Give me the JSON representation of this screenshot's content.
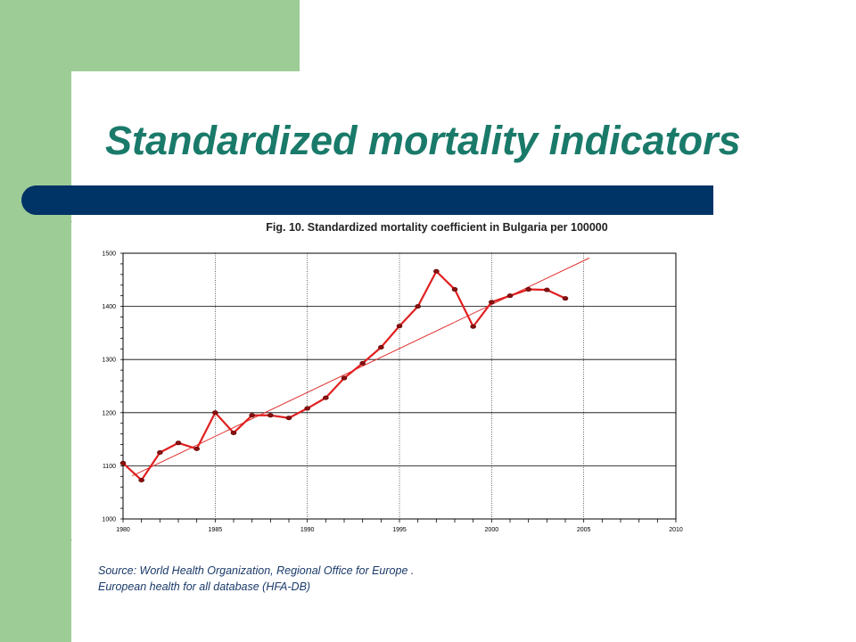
{
  "slide": {
    "title": "Standardized mortality indicators",
    "colors": {
      "green": "#9dcc97",
      "title": "#1a7a6a",
      "bar": "#003366",
      "series": "#e02020",
      "trend": "#e03030",
      "source_text": "#1a3a6a"
    }
  },
  "chart_data": {
    "type": "line",
    "title": "Fig. 10. Standardized mortality coefficient in Bulgaria per 100000",
    "xlabel": "",
    "ylabel": "",
    "xlim": [
      1980,
      2010
    ],
    "ylim": [
      1000,
      1500
    ],
    "x_ticks": [
      1980,
      1985,
      1990,
      1995,
      2000,
      2005,
      2010
    ],
    "y_ticks": [
      1000,
      1100,
      1200,
      1300,
      1400,
      1500
    ],
    "grid": true,
    "series": [
      {
        "x": [
          1980,
          1981,
          1982,
          1983,
          1984,
          1985,
          1986,
          1987,
          1988,
          1989,
          1990,
          1991,
          1992,
          1993,
          1994,
          1995,
          1996,
          1997,
          1998,
          1999,
          2000,
          2001,
          2002,
          2003,
          2004
        ],
        "values": [
          1105,
          1073,
          1125,
          1143,
          1132,
          1200,
          1162,
          1195,
          1195,
          1190,
          1208,
          1228,
          1265,
          1293,
          1323,
          1363,
          1400,
          1466,
          1432,
          1362,
          1408,
          1420,
          1432,
          1431,
          1415
        ],
        "color": "#e02020"
      },
      {
        "type": "trendline",
        "x": [
          1980.5,
          2005.3
        ],
        "values": [
          1081,
          1491
        ],
        "color": "#e03030"
      }
    ]
  },
  "source": {
    "line1": "Source: World Health Organization, Regional Office for Europe .",
    "line2": "European health for all database (HFA-DB)"
  }
}
